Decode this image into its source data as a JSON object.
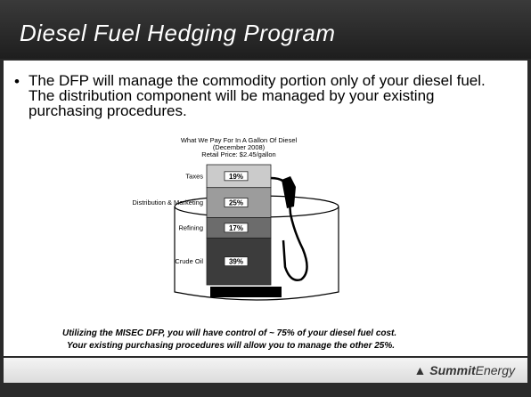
{
  "header": {
    "title": "Diesel Fuel Hedging Program"
  },
  "bullet": "The DFP will manage the commodity portion only of your diesel fuel. The distribution component will be managed by your existing purchasing procedures.",
  "chart_data": {
    "type": "stacked-bar",
    "title": [
      "What We Pay For In A Gallon Of Diesel",
      "(December 2008)",
      "Retail Price: $2.45/gallon"
    ],
    "categories": [
      "Crude Oil",
      "Refining",
      "Distribution & Marketing",
      "Taxes"
    ],
    "values": [
      39,
      17,
      25,
      19
    ],
    "value_labels": [
      "39%",
      "17%",
      "25%",
      "19%"
    ],
    "colors": [
      "#3c3c3c",
      "#6c6c6c",
      "#9c9c9c",
      "#cbcbcb"
    ]
  },
  "footer": {
    "note": [
      "Utilizing the MISEC DFP, you will have control of ~ 75% of your diesel fuel cost.",
      "Your existing purchasing procedures will allow you to manage the other 25%."
    ],
    "logo_bold": "Summit",
    "logo_light": "Energy"
  }
}
